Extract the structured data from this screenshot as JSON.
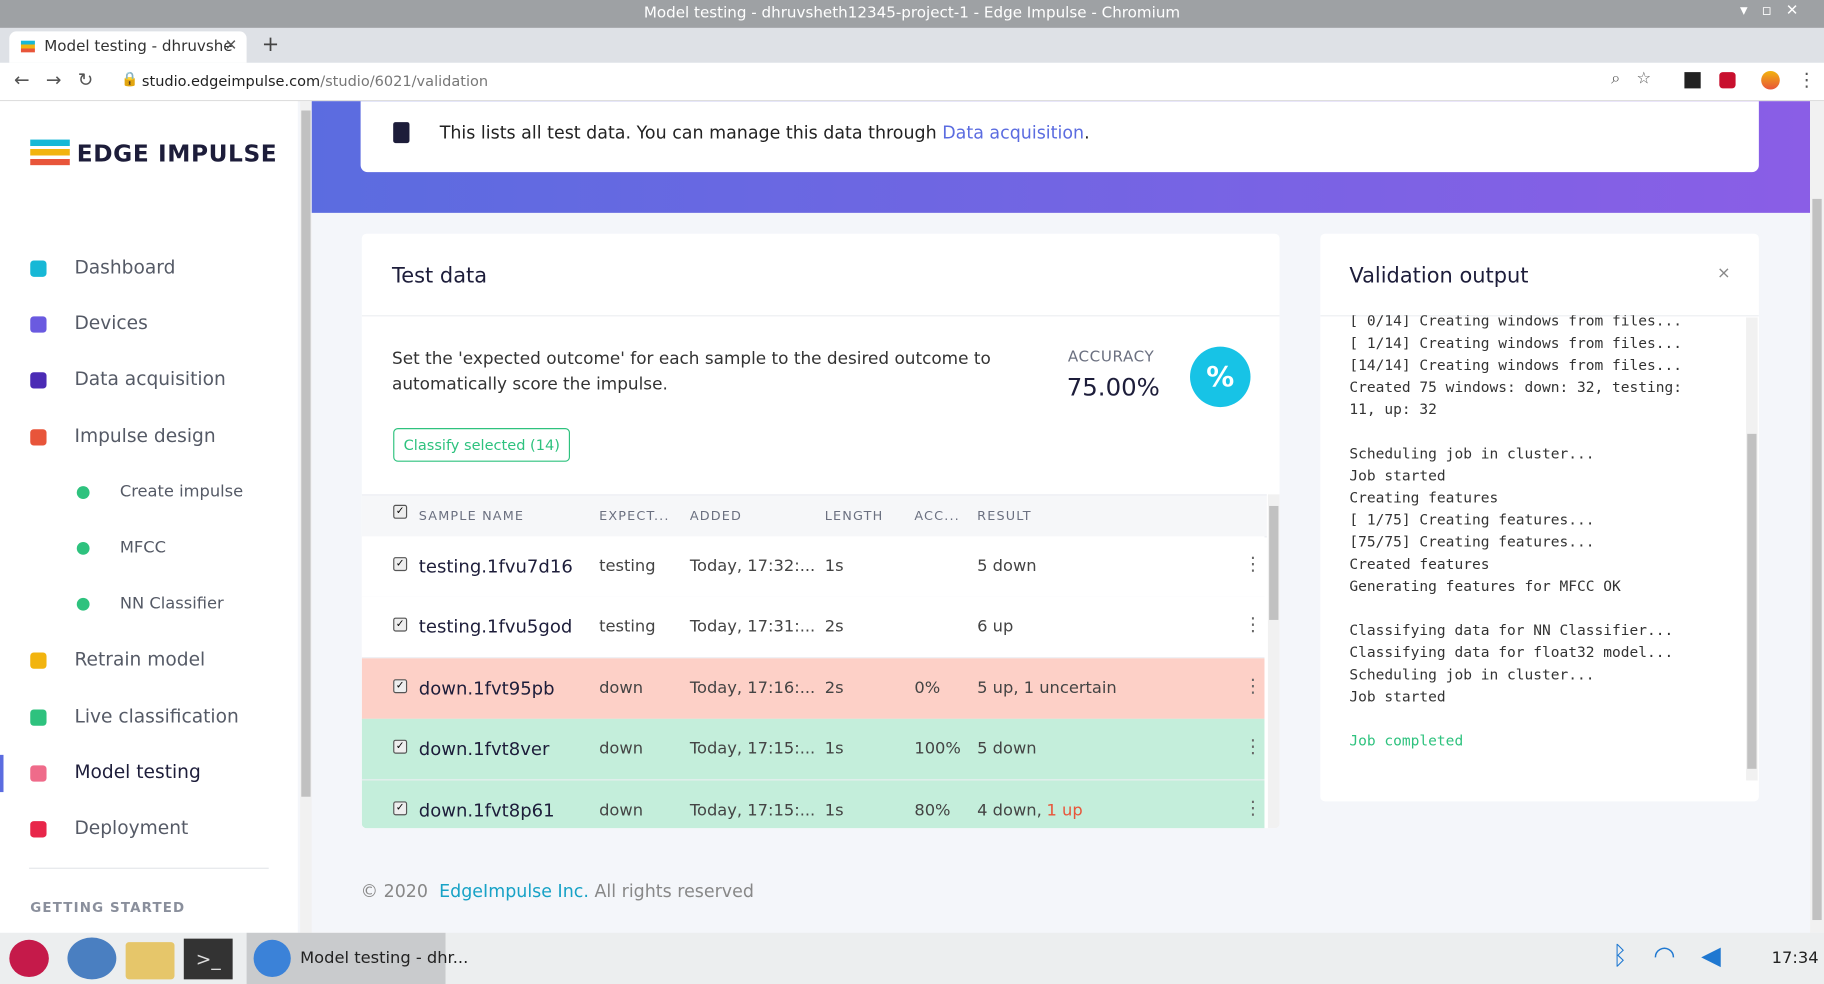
{
  "window_title": "Model testing - dhruvsheth12345-project-1 - Edge Impulse - Chromium",
  "tab": {
    "title": "Model testing - dhruvshe"
  },
  "address_bar": {
    "domain": "studio.edgeimpulse.com",
    "path": "/studio/6021/validation"
  },
  "sidebar": {
    "brand": "EDGE IMPULSE",
    "nav": [
      {
        "label": "Dashboard",
        "icon_color": "#17b8d6",
        "sub": false,
        "active": false
      },
      {
        "label": "Devices",
        "icon_color": "#6a5ae0",
        "sub": false,
        "active": false
      },
      {
        "label": "Data acquisition",
        "icon_color": "#4b2bb5",
        "sub": false,
        "active": false
      },
      {
        "label": "Impulse design",
        "icon_color": "#e8553a",
        "sub": false,
        "active": false
      },
      {
        "label": "Create impulse",
        "icon_color": "#2ec27e",
        "sub": true,
        "active": false
      },
      {
        "label": "MFCC",
        "icon_color": "#2ec27e",
        "sub": true,
        "active": false
      },
      {
        "label": "NN Classifier",
        "icon_color": "#2ec27e",
        "sub": true,
        "active": false
      },
      {
        "label": "Retrain model",
        "icon_color": "#f2b40f",
        "sub": false,
        "active": false
      },
      {
        "label": "Live classification",
        "icon_color": "#2ec27e",
        "sub": false,
        "active": false
      },
      {
        "label": "Model testing",
        "icon_color": "#ef6b8a",
        "sub": false,
        "active": true
      },
      {
        "label": "Deployment",
        "icon_color": "#e8264a",
        "sub": false,
        "active": false
      }
    ],
    "section": "GETTING STARTED"
  },
  "info_banner": {
    "text": "This lists all test data. You can manage this data through ",
    "link": "Data acquisition",
    "end": "."
  },
  "test_data": {
    "title": "Test data",
    "description": "Set the 'expected outcome' for each sample to the desired outcome to automatically score the impulse.",
    "accuracy_label": "ACCURACY",
    "accuracy": "75.00%",
    "button": "Classify selected (14)",
    "columns": [
      "SAMPLE NAME",
      "EXPECT...",
      "ADDED",
      "LENGTH",
      "ACC...",
      "RESULT"
    ],
    "rows": [
      {
        "name": "testing.1fvu7d16",
        "expected": "testing",
        "added": "Today, 17:32:...",
        "length": "1s",
        "accuracy": null,
        "result": "5 down",
        "result_alert": null,
        "background": "#ffffff"
      },
      {
        "name": "testing.1fvu5god",
        "expected": "testing",
        "added": "Today, 17:31:...",
        "length": "2s",
        "accuracy": null,
        "result": "6 up",
        "result_alert": null,
        "background": "#ffffff"
      },
      {
        "name": "down.1fvt95pb",
        "expected": "down",
        "added": "Today, 17:16:...",
        "length": "2s",
        "accuracy": "0%",
        "result": "5 up, 1 uncertain",
        "result_alert": null,
        "background": "#fdd0c7"
      },
      {
        "name": "down.1fvt8ver",
        "expected": "down",
        "added": "Today, 17:15:...",
        "length": "1s",
        "accuracy": "100%",
        "result": "5 down",
        "result_alert": null,
        "background": "#c4eedb"
      },
      {
        "name": "down.1fvt8p61",
        "expected": "down",
        "added": "Today, 17:15:...",
        "length": "1s",
        "accuracy": "80%",
        "result": "4 down,",
        "result_alert": "1 up",
        "background": "#c4eedb"
      }
    ]
  },
  "validation_output": {
    "title": "Validation output",
    "success_color": "#2ec27e",
    "blocks": [
      [
        "[ 0/14] Creating windows from files...",
        "[ 1/14] Creating windows from files...",
        "[14/14] Creating windows from files...",
        "Created 75 windows: down: 32, testing:",
        "11, up: 32"
      ],
      [
        "Scheduling job in cluster...",
        "Job started",
        "Creating features",
        "[ 1/75] Creating features...",
        "[75/75] Creating features...",
        "Created features",
        "Generating features for MFCC OK"
      ],
      [
        "Classifying data for NN Classifier...",
        "Classifying data for float32 model...",
        "Scheduling job in cluster...",
        "Job started"
      ],
      [
        "Job completed"
      ]
    ]
  },
  "footer": {
    "copyright": "© 2020",
    "company": "EdgeImpulse Inc.",
    "rights": "All rights reserved"
  },
  "taskbar": {
    "window": "Model testing - dhr...",
    "clock": "17:34"
  }
}
